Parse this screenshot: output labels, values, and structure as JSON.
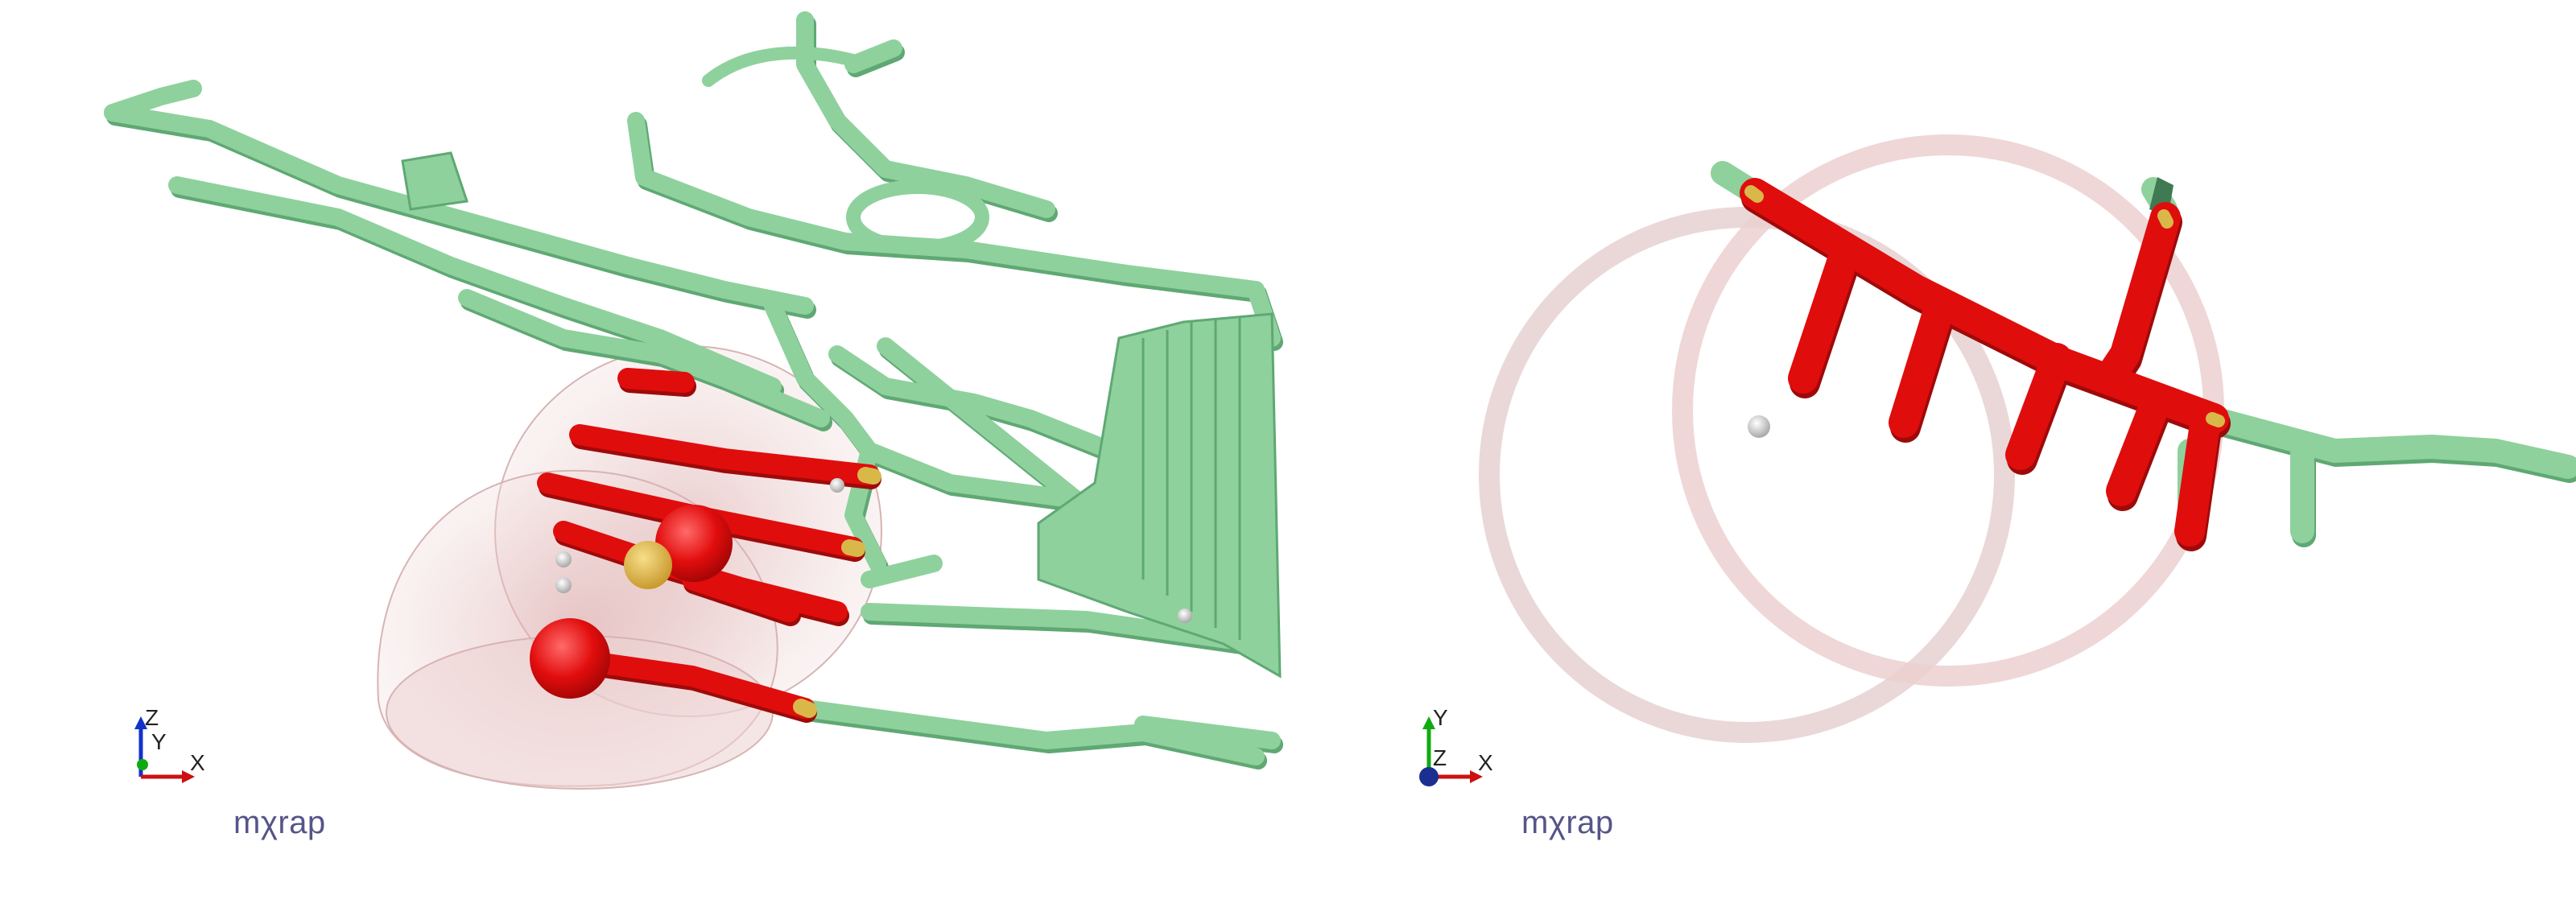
{
  "panels": [
    {
      "view": "perspective",
      "triad": {
        "vertical": "Z",
        "depth": "Y",
        "horizontal": "X"
      },
      "brand": "mχrap"
    },
    {
      "view": "plan",
      "triad": {
        "vertical": "Y",
        "depth": "Z",
        "horizontal": "X"
      },
      "brand": "mχrap"
    }
  ],
  "colors": {
    "background": "#ffffff",
    "tunnel": "#8ed19c",
    "tunnel_shadow": "#5fa874",
    "highlight": "#e00d0d",
    "transition": "#d9b84a",
    "sphere": "#ee0c0c",
    "sphere_halo": "#e8c4c4",
    "ring": "#e7d3d3",
    "axis_x": "#cc1111",
    "axis_y": "#11aa11",
    "axis_z": "#1133cc",
    "brand_text": "#55558a"
  },
  "icons": [
    "axis-triad-icon",
    "axis-triad-icon"
  ]
}
